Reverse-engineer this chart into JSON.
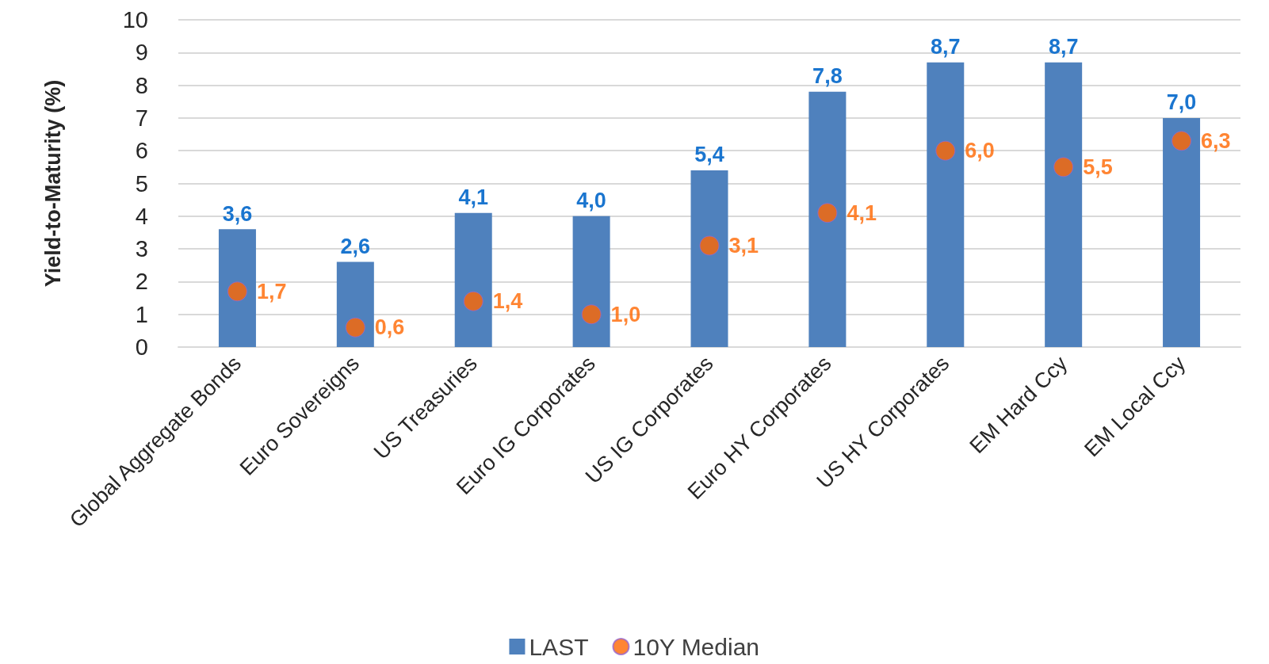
{
  "chart_data": {
    "type": "bar",
    "ylabel": "Yield-to-Maturity (%)",
    "categories": [
      "Global Aggregate Bonds",
      "Euro Sovereigns",
      "US Treasuries",
      "Euro IG Corporates",
      "US IG Corporates",
      "Euro HY Corporates",
      "US HY Corporates",
      "EM Hard Ccy",
      "EM Local Ccy"
    ],
    "series": [
      {
        "name": "LAST",
        "color": "#4f81bd",
        "values": [
          3.6,
          2.6,
          4.1,
          4.0,
          5.4,
          7.8,
          8.7,
          8.7,
          7.0
        ],
        "value_labels": [
          "3,6",
          "2,6",
          "4,1",
          "4,0",
          "5,4",
          "7,8",
          "8,7",
          "8,7",
          "7,0"
        ]
      },
      {
        "name": "10Y Median",
        "type": "scatter",
        "color": "#ff6600",
        "marker": "circle",
        "x": [
          "Global Aggregate Bonds",
          "Euro Sovereigns",
          "US Treasuries",
          "Euro IG Corporates",
          "US IG Corporates",
          "Euro HY Corporates",
          "US HY Corporates",
          "EM Hard Ccy",
          "EM Local Ccy"
        ],
        "values": [
          1.7,
          0.6,
          1.4,
          1.0,
          3.1,
          4.1,
          6.0,
          5.5,
          6.3
        ],
        "value_labels": [
          "1,7",
          "0,6",
          "1,4",
          "1,0",
          "3,1",
          "4,1",
          "6,0",
          "5,5",
          "6,3"
        ]
      }
    ],
    "ylim": [
      0,
      10
    ],
    "yticks": [
      0,
      1,
      2,
      3,
      4,
      5,
      6,
      7,
      8,
      9,
      10
    ],
    "grid": "y",
    "legend": "bottom"
  }
}
